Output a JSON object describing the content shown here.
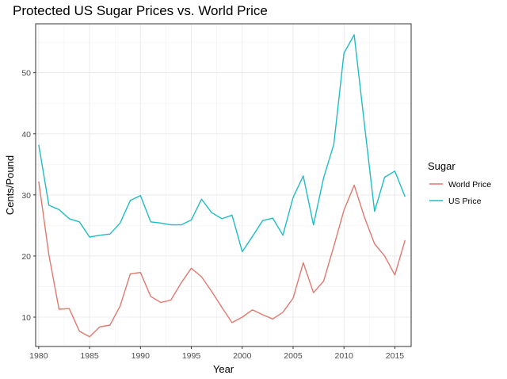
{
  "chart_data": {
    "type": "line",
    "title": "Protected US Sugar Prices vs. World Price",
    "xlabel": "Year",
    "ylabel": "Cents/Pound",
    "xlim": [
      1979.7,
      2016.6
    ],
    "ylim": [
      5.2,
      58.0
    ],
    "x_ticks": [
      1980,
      1985,
      1990,
      1995,
      2000,
      2005,
      2010,
      2015
    ],
    "y_ticks": [
      10,
      20,
      30,
      40,
      50
    ],
    "grid": true,
    "legend": {
      "title": "Sugar",
      "position": "right"
    },
    "x": [
      1980,
      1981,
      1982,
      1983,
      1984,
      1985,
      1986,
      1987,
      1988,
      1989,
      1990,
      1991,
      1992,
      1993,
      1994,
      1995,
      1996,
      1997,
      1998,
      1999,
      2000,
      2001,
      2002,
      2003,
      2004,
      2005,
      2006,
      2007,
      2008,
      2009,
      2010,
      2011,
      2012,
      2013,
      2014,
      2015,
      2016
    ],
    "series": [
      {
        "name": "World Price",
        "color": "#e0796f",
        "values": [
          32.2,
          20.2,
          11.3,
          11.4,
          7.7,
          6.8,
          8.4,
          8.7,
          11.8,
          17.1,
          17.3,
          13.4,
          12.4,
          12.8,
          15.6,
          18.0,
          16.6,
          14.2,
          11.6,
          9.1,
          10.0,
          11.2,
          10.4,
          9.7,
          10.8,
          13.1,
          18.9,
          14.0,
          15.9,
          21.6,
          27.5,
          31.6,
          26.4,
          22.0,
          20.0,
          16.9,
          22.6
        ]
      },
      {
        "name": "US Price",
        "color": "#1fbdc4",
        "values": [
          38.2,
          28.3,
          27.6,
          26.1,
          25.6,
          23.1,
          23.4,
          23.6,
          25.4,
          29.1,
          29.9,
          25.6,
          25.4,
          25.1,
          25.1,
          25.9,
          29.3,
          27.1,
          26.1,
          26.7,
          20.7,
          23.2,
          25.8,
          26.2,
          23.4,
          29.6,
          33.1,
          25.1,
          32.8,
          38.3,
          53.2,
          56.2,
          41.7,
          27.3,
          32.9,
          33.9,
          29.7
        ]
      }
    ]
  }
}
